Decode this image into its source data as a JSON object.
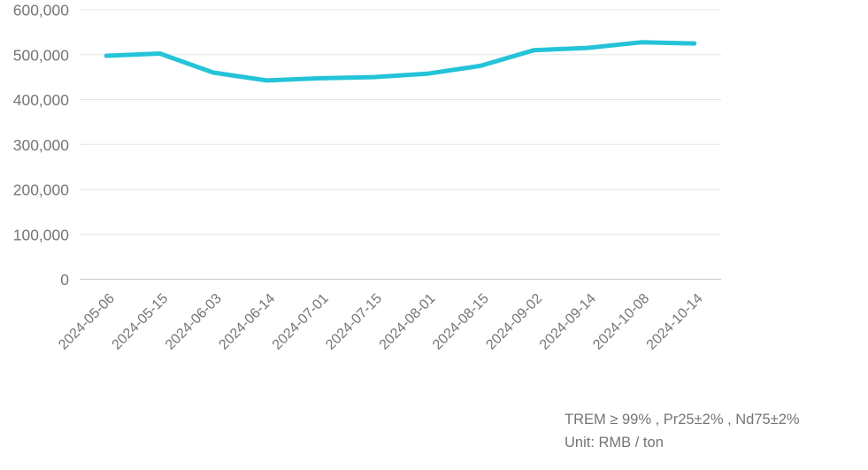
{
  "chart_data": {
    "type": "line",
    "title": "",
    "xlabel": "",
    "ylabel": "",
    "categories": [
      "2024-05-06",
      "2024-05-15",
      "2024-06-03",
      "2024-06-14",
      "2024-07-01",
      "2024-07-15",
      "2024-08-01",
      "2024-08-15",
      "2024-09-02",
      "2024-09-14",
      "2024-10-08",
      "2024-10-14"
    ],
    "values": [
      497500,
      502500,
      460000,
      442500,
      447500,
      450000,
      457500,
      475000,
      510000,
      515000,
      527500,
      525000
    ],
    "ylim": [
      0,
      600000
    ],
    "y_tick_step": 100000,
    "y_tick_labels": [
      "0",
      "100,000",
      "200,000",
      "300,000",
      "400,000",
      "500,000",
      "600,000"
    ],
    "x_label_rotation": -45,
    "grid": "horizontal-only",
    "legend_position": "none",
    "line_color": "#24c3d8",
    "axis_text_color": "#767676",
    "gridline_color": "#e6e6e6",
    "zero_line_color": "#c9c9c9"
  },
  "annotation": {
    "line1": "TREM ≥ 99% , Pr25±2% , Nd75±2%",
    "line2": "Unit: RMB / ton"
  }
}
